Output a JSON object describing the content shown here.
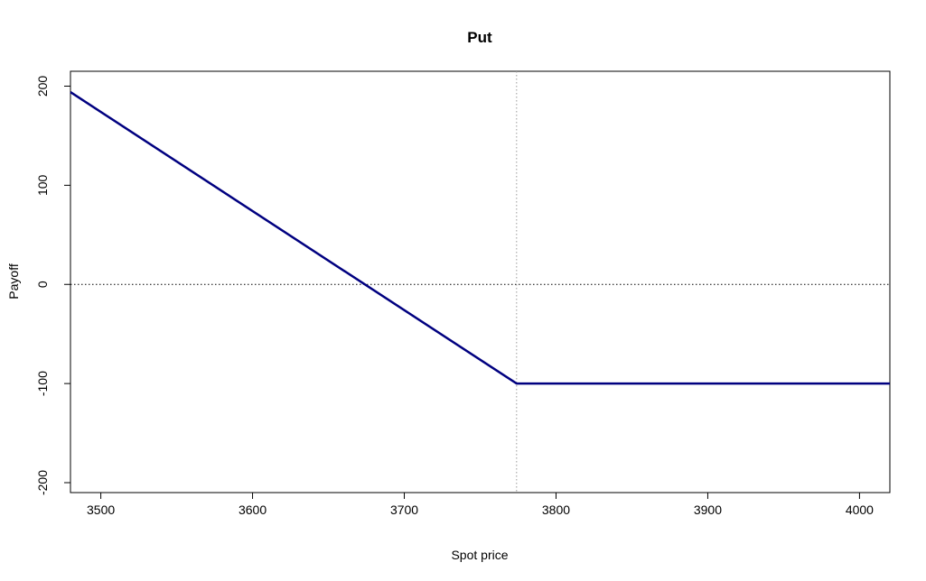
{
  "chart_data": {
    "type": "line",
    "title": "Put",
    "xlabel": "Spot price",
    "ylabel": "Payoff",
    "xlim": [
      3480,
      4020
    ],
    "ylim": [
      -210,
      215
    ],
    "xticks": [
      3500,
      3600,
      3700,
      3800,
      3900,
      4000
    ],
    "yticks": [
      -200,
      -100,
      0,
      100,
      200
    ],
    "xtick_labels": [
      "3500",
      "3600",
      "3700",
      "3800",
      "3900",
      "4000"
    ],
    "ytick_labels": [
      "-200",
      "-100",
      "0",
      "100",
      "200"
    ],
    "grid": false,
    "series": [
      {
        "x": [
          3480,
          3774,
          4020
        ],
        "y": [
          194,
          -100,
          -100
        ],
        "color": "#000080"
      }
    ],
    "reference_lines": {
      "horizontal": {
        "y": 0,
        "style": "dotted",
        "color": "#000000"
      },
      "vertical": {
        "x": 3774,
        "style": "dotted",
        "color": "#9a9a9a"
      }
    }
  }
}
